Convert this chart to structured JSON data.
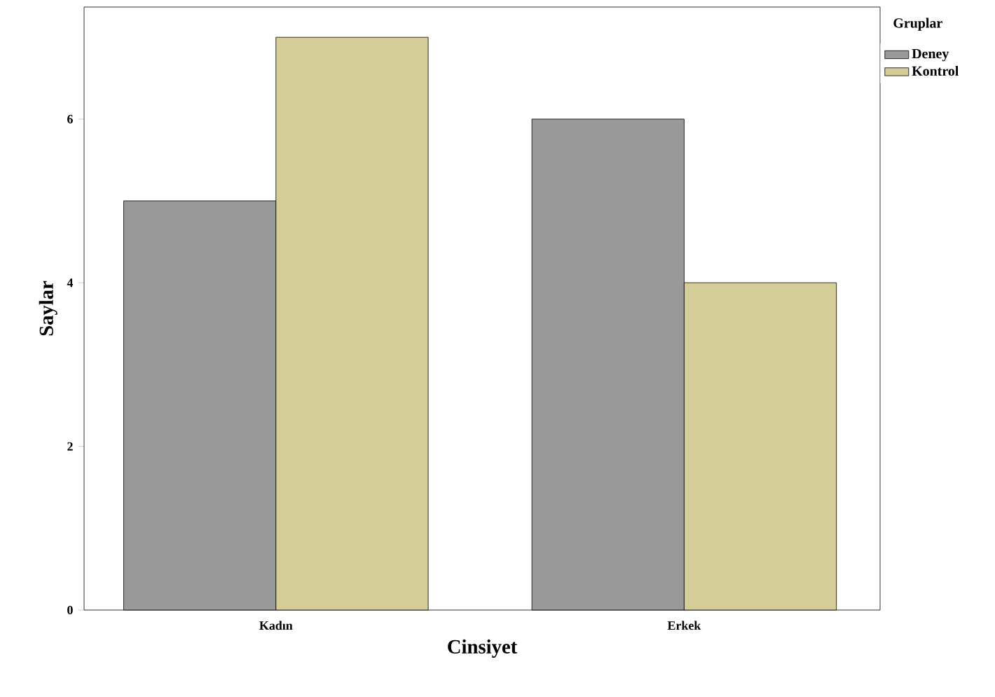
{
  "chart_data": {
    "type": "bar",
    "xlabel": "Cinsiyet",
    "ylabel": "Saylar",
    "legend_title": "Gruplar",
    "categories": [
      "Kadın",
      "Erkek"
    ],
    "series": [
      {
        "name": "Deney",
        "color": "#999999",
        "values": [
          5,
          6
        ]
      },
      {
        "name": "Kontrol",
        "color": "#d4cd98",
        "values": [
          7,
          4
        ]
      }
    ],
    "ylim": [
      0,
      7.37
    ],
    "yticks": [
      0,
      2,
      4,
      6
    ],
    "grid": false,
    "legend": "top right"
  }
}
